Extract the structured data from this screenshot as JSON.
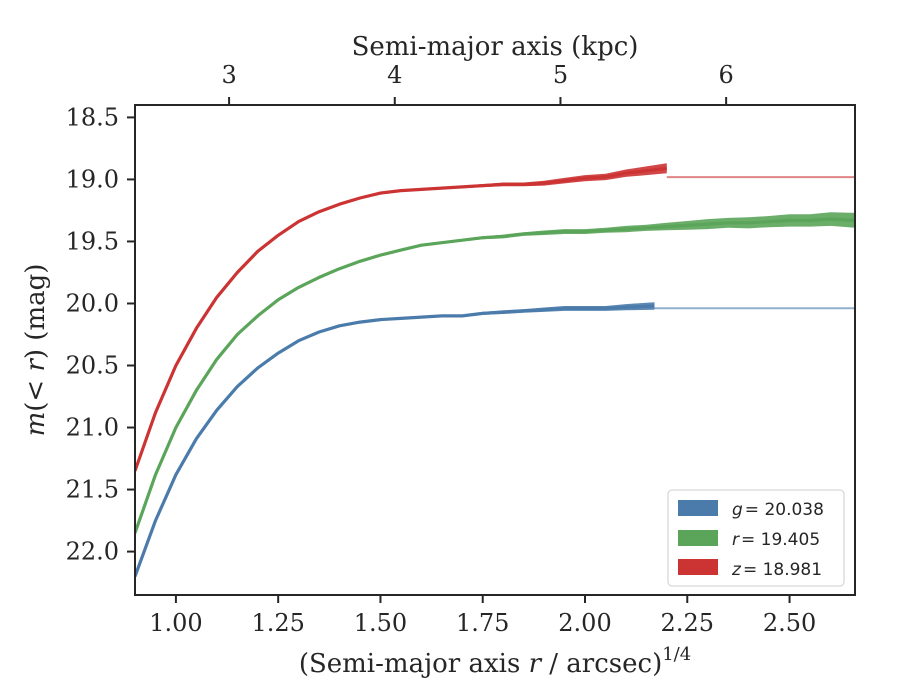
{
  "chart_data": {
    "type": "line",
    "xlabel": "(Semi-major axis r / arcsec)^(1/4)",
    "xlabel_parts": {
      "before": "(Semi-major axis ",
      "var": "r",
      "after": " / arcsec)",
      "sup": "1/4"
    },
    "ylabel": "m(< r) (mag)",
    "ylabel_parts": {
      "m": "m",
      "open": "(",
      "lt": "< ",
      "r": "r",
      "close": ")",
      "unit": " (mag)"
    },
    "top_xlabel": "Semi-major axis (kpc)",
    "xlim": [
      0.9,
      2.66
    ],
    "ylim": [
      22.35,
      18.4
    ],
    "y_inverted": true,
    "xticks": [
      1.0,
      1.25,
      1.5,
      1.75,
      2.0,
      2.25,
      2.5
    ],
    "xtick_labels": [
      "1.00",
      "1.25",
      "1.50",
      "1.75",
      "2.00",
      "2.25",
      "2.50"
    ],
    "yticks": [
      18.5,
      19.0,
      19.5,
      20.0,
      20.5,
      21.0,
      21.5,
      22.0
    ],
    "ytick_labels": [
      "18.5",
      "19.0",
      "19.5",
      "20.0",
      "20.5",
      "21.0",
      "21.5",
      "22.0"
    ],
    "top_xticks": [
      {
        "label": "3",
        "at": 1.13
      },
      {
        "label": "4",
        "at": 1.535
      },
      {
        "label": "5",
        "at": 1.94
      },
      {
        "label": "6",
        "at": 2.345
      }
    ],
    "legend_position": "bottom-right",
    "series": [
      {
        "name": "g = 20.038",
        "legend_var": "g",
        "legend_value": "= 20.038",
        "color": "#4a7bab",
        "asymptote": 20.038,
        "x": [
          0.9,
          0.95,
          1.0,
          1.05,
          1.1,
          1.15,
          1.2,
          1.25,
          1.3,
          1.35,
          1.4,
          1.45,
          1.5,
          1.55,
          1.6,
          1.65,
          1.7,
          1.75,
          1.8,
          1.85,
          1.9,
          1.95,
          2.0,
          2.05,
          2.1,
          2.17
        ],
        "y": [
          22.2,
          21.75,
          21.38,
          21.09,
          20.86,
          20.67,
          20.52,
          20.4,
          20.3,
          20.23,
          20.18,
          20.15,
          20.13,
          20.12,
          20.11,
          20.1,
          20.1,
          20.08,
          20.07,
          20.06,
          20.05,
          20.04,
          20.04,
          20.04,
          20.03,
          20.02
        ],
        "band": [
          0.01,
          0.01,
          0.01,
          0.01,
          0.01,
          0.01,
          0.01,
          0.01,
          0.01,
          0.01,
          0.01,
          0.01,
          0.01,
          0.01,
          0.01,
          0.01,
          0.01,
          0.012,
          0.015,
          0.015,
          0.018,
          0.02,
          0.02,
          0.02,
          0.025,
          0.03
        ]
      },
      {
        "name": "r = 19.405",
        "legend_var": "r",
        "legend_value": "= 19.405",
        "color": "#5aa55a",
        "asymptote": 19.405,
        "x": [
          0.9,
          0.95,
          1.0,
          1.05,
          1.1,
          1.15,
          1.2,
          1.25,
          1.3,
          1.35,
          1.4,
          1.45,
          1.5,
          1.55,
          1.6,
          1.65,
          1.7,
          1.75,
          1.8,
          1.85,
          1.9,
          1.95,
          2.0,
          2.05,
          2.1,
          2.15,
          2.2,
          2.25,
          2.3,
          2.35,
          2.4,
          2.45,
          2.5,
          2.55,
          2.6,
          2.66
        ],
        "y": [
          21.85,
          21.38,
          21.0,
          20.7,
          20.45,
          20.25,
          20.1,
          19.97,
          19.87,
          19.79,
          19.72,
          19.66,
          19.61,
          19.57,
          19.53,
          19.51,
          19.49,
          19.47,
          19.46,
          19.44,
          19.43,
          19.42,
          19.42,
          19.41,
          19.4,
          19.39,
          19.38,
          19.37,
          19.36,
          19.35,
          19.35,
          19.34,
          19.33,
          19.33,
          19.32,
          19.33
        ],
        "band": [
          0.01,
          0.01,
          0.01,
          0.01,
          0.01,
          0.01,
          0.01,
          0.01,
          0.01,
          0.01,
          0.01,
          0.01,
          0.01,
          0.01,
          0.01,
          0.01,
          0.01,
          0.012,
          0.015,
          0.015,
          0.018,
          0.02,
          0.02,
          0.02,
          0.025,
          0.025,
          0.03,
          0.035,
          0.04,
          0.04,
          0.045,
          0.045,
          0.05,
          0.05,
          0.055,
          0.06
        ]
      },
      {
        "name": "z = 18.981",
        "legend_var": "z",
        "legend_value": "= 18.981",
        "color": "#cc3333",
        "asymptote": 18.981,
        "x": [
          0.9,
          0.95,
          1.0,
          1.05,
          1.1,
          1.15,
          1.2,
          1.25,
          1.3,
          1.35,
          1.4,
          1.45,
          1.5,
          1.55,
          1.6,
          1.65,
          1.7,
          1.75,
          1.8,
          1.85,
          1.9,
          1.95,
          2.0,
          2.05,
          2.1,
          2.15,
          2.2
        ],
        "y": [
          21.35,
          20.88,
          20.5,
          20.2,
          19.95,
          19.75,
          19.58,
          19.45,
          19.34,
          19.26,
          19.2,
          19.15,
          19.11,
          19.09,
          19.08,
          19.07,
          19.06,
          19.05,
          19.04,
          19.04,
          19.03,
          19.01,
          18.99,
          18.98,
          18.95,
          18.93,
          18.91
        ],
        "band": [
          0.01,
          0.01,
          0.01,
          0.01,
          0.01,
          0.01,
          0.01,
          0.01,
          0.01,
          0.01,
          0.01,
          0.01,
          0.01,
          0.01,
          0.01,
          0.01,
          0.01,
          0.012,
          0.015,
          0.015,
          0.02,
          0.022,
          0.025,
          0.025,
          0.03,
          0.035,
          0.04
        ]
      }
    ]
  }
}
